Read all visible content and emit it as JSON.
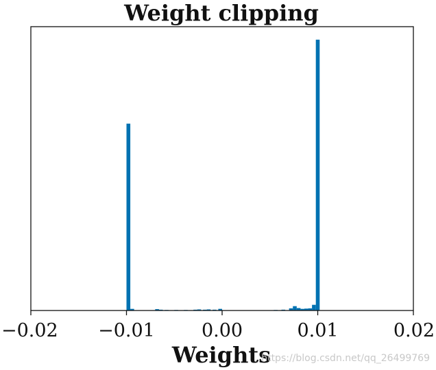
{
  "chart_data": {
    "type": "bar",
    "title": "Weight clipping",
    "xlabel": "Weights",
    "ylabel": "",
    "xlim": [
      -0.02,
      0.02
    ],
    "ylim": [
      0,
      1.0
    ],
    "x_ticks": [
      -0.02,
      -0.01,
      0.0,
      0.01,
      0.02
    ],
    "x_tick_labels": [
      "−0.02",
      "−0.01",
      "0.00",
      "0.01",
      "0.02"
    ],
    "y_ticks_shown": false,
    "grid": false,
    "bar_color": "#0072b2",
    "bin_width": 0.0004,
    "bins": [
      {
        "x": -0.01,
        "value": 0.69
      },
      {
        "x": -0.0096,
        "value": 0.006
      },
      {
        "x": -0.007,
        "value": 0.005
      },
      {
        "x": -0.0066,
        "value": 0.003
      },
      {
        "x": -0.006,
        "value": 0.002
      },
      {
        "x": -0.005,
        "value": 0.002
      },
      {
        "x": -0.004,
        "value": 0.002
      },
      {
        "x": -0.003,
        "value": 0.003
      },
      {
        "x": -0.0026,
        "value": 0.004
      },
      {
        "x": -0.002,
        "value": 0.003
      },
      {
        "x": -0.0016,
        "value": 0.004
      },
      {
        "x": -0.001,
        "value": 0.003
      },
      {
        "x": -0.0004,
        "value": 0.006
      },
      {
        "x": 0.0054,
        "value": 0.002
      },
      {
        "x": 0.0062,
        "value": 0.003
      },
      {
        "x": 0.007,
        "value": 0.008
      },
      {
        "x": 0.0074,
        "value": 0.016
      },
      {
        "x": 0.0078,
        "value": 0.009
      },
      {
        "x": 0.0082,
        "value": 0.006
      },
      {
        "x": 0.0086,
        "value": 0.007
      },
      {
        "x": 0.009,
        "value": 0.008
      },
      {
        "x": 0.0094,
        "value": 0.021
      },
      {
        "x": 0.0098,
        "value": 1.0
      }
    ]
  },
  "watermark": "https://blog.csdn.net/qq_26499769"
}
